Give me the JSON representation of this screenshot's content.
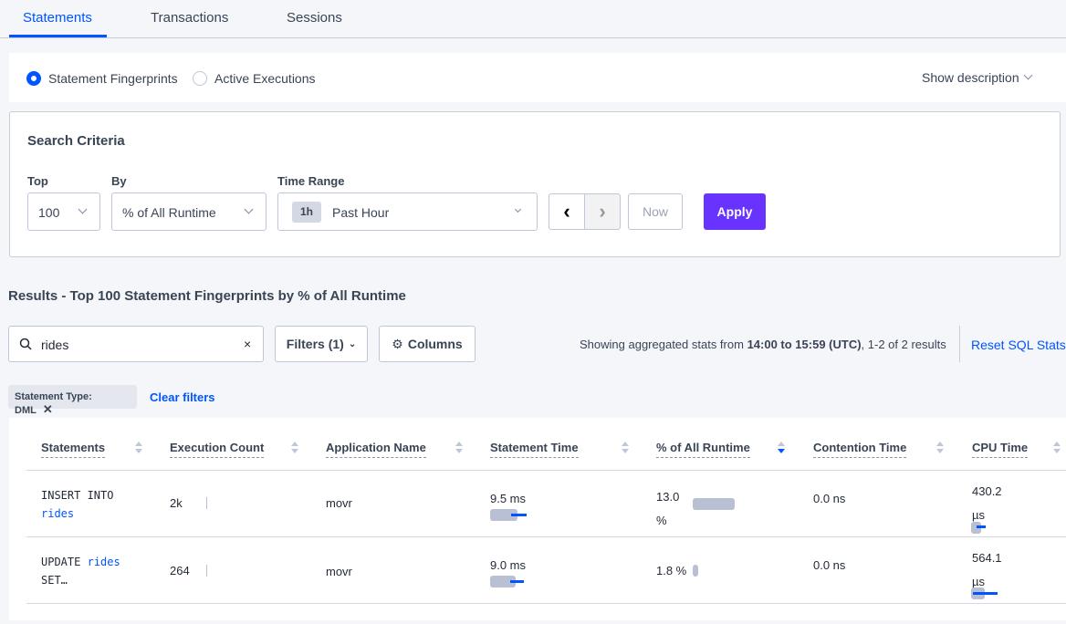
{
  "tabs": [
    {
      "label": "Statements",
      "active": true
    },
    {
      "label": "Transactions"
    },
    {
      "label": "Sessions"
    }
  ],
  "view_toggle": {
    "options": [
      "Statement Fingerprints",
      "Active Executions"
    ],
    "selected": "Statement Fingerprints",
    "show_description": "Show description"
  },
  "search_criteria": {
    "title": "Search Criteria",
    "top_label": "Top",
    "top_value": "100",
    "by_label": "By",
    "by_value": "% of All Runtime",
    "time_range_label": "Time Range",
    "time_badge": "1h",
    "time_value": "Past Hour",
    "now_label": "Now",
    "apply_label": "Apply"
  },
  "results_title": "Results - Top 100 Statement Fingerprints by % of All Runtime",
  "toolbar": {
    "search_value": "rides",
    "filters_label": "Filters (1)",
    "columns_label": "Columns",
    "summary_prefix": "Showing aggregated stats from ",
    "summary_range": "14:00 to 15:59 (UTC)",
    "summary_suffix": ", 1-2 of 2 results",
    "reset_label": "Reset SQL Stats"
  },
  "active_filter": {
    "chip": "Statement Type: DML",
    "clear_label": "Clear filters"
  },
  "colors": {
    "accent": "#0055ff",
    "apply": "#6933ff"
  },
  "table": {
    "columns": [
      "Statements",
      "Execution Count",
      "Application Name",
      "Statement Time",
      "% of All Runtime",
      "Contention Time",
      "CPU Time"
    ],
    "sorted_column": "% of All Runtime",
    "sort_direction": "desc",
    "rows": [
      {
        "stmt_a": "INSERT INTO",
        "stmt_link": "rides",
        "stmt_b": "",
        "exec_count": "2k",
        "app": "movr",
        "stmt_time": "9.5 ms",
        "runtime_pct": "13.0 %",
        "runtime_value": 13.0,
        "contention": "0.0 ns",
        "cpu_time": "430.2 µs"
      },
      {
        "stmt_a": "UPDATE",
        "stmt_link": "rides",
        "stmt_b": "SET…",
        "exec_count": "264",
        "app": "movr",
        "stmt_time": "9.0 ms",
        "runtime_pct": "1.8 %",
        "runtime_value": 1.8,
        "contention": "0.0 ns",
        "cpu_time": "564.1 µs"
      }
    ]
  }
}
